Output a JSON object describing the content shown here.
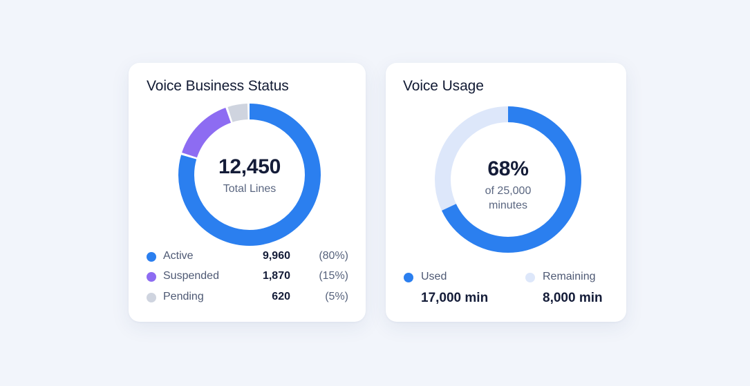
{
  "colors": {
    "active": "#2b7fef",
    "suspended": "#8d6cf2",
    "pending": "#cfd4df",
    "used": "#2b7fef",
    "remaining": "#dde7fa"
  },
  "status_card": {
    "title": "Voice Business Status",
    "total_value": "12,450",
    "total_label": "Total Lines",
    "segments": [
      {
        "label": "Active",
        "value": "9,960",
        "percent": "(80%)",
        "share": 80,
        "color": "#2b7fef"
      },
      {
        "label": "Suspended",
        "value": "1,870",
        "percent": "(15%)",
        "share": 15,
        "color": "#8d6cf2"
      },
      {
        "label": "Pending",
        "value": "620",
        "percent": "(5%)",
        "share": 5,
        "color": "#cfd4df"
      }
    ]
  },
  "usage_card": {
    "title": "Voice Usage",
    "percent_value": "68%",
    "percent_share": 68,
    "caption_line1": "of 25,000",
    "caption_line2": "minutes",
    "used": {
      "label": "Used",
      "amount": "17,000 min",
      "color": "#2b7fef"
    },
    "remaining": {
      "label": "Remaining",
      "amount": "8,000 min",
      "color": "#dde7fa"
    }
  }
}
